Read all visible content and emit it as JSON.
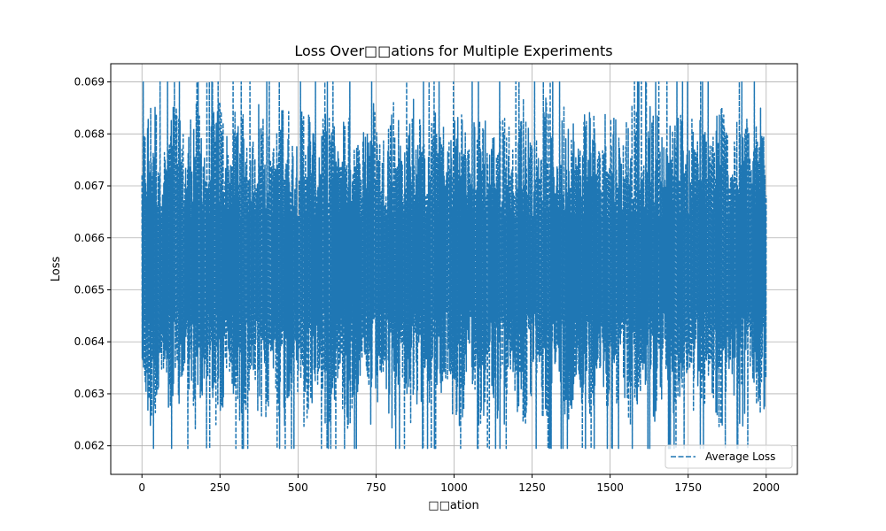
{
  "chart_data": {
    "type": "line",
    "title": "Loss Over□□ations for Multiple Experiments",
    "xlabel": "□□ation",
    "ylabel": "Loss",
    "xlim": [
      -100,
      2100
    ],
    "ylim": [
      0.06145,
      0.06935
    ],
    "xticks": [
      0,
      250,
      500,
      750,
      1000,
      1250,
      1500,
      1750,
      2000
    ],
    "xtick_labels": [
      "0",
      "250",
      "500",
      "750",
      "1000",
      "1250",
      "1500",
      "1750",
      "2000"
    ],
    "yticks": [
      0.062,
      0.063,
      0.064,
      0.065,
      0.066,
      0.067,
      0.068,
      0.069
    ],
    "ytick_labels": [
      "0.062",
      "0.063",
      "0.064",
      "0.065",
      "0.066",
      "0.067",
      "0.068",
      "0.069"
    ],
    "grid": true,
    "legend_position": "bottom-right",
    "series": [
      {
        "name": "Average Loss",
        "color": "#1f77b4",
        "line_style": "dashed",
        "x_range": [
          0,
          2000
        ],
        "y_min": 0.0619,
        "y_max": 0.069,
        "y_start": 0.0672,
        "y_center": 0.0655
      }
    ]
  }
}
